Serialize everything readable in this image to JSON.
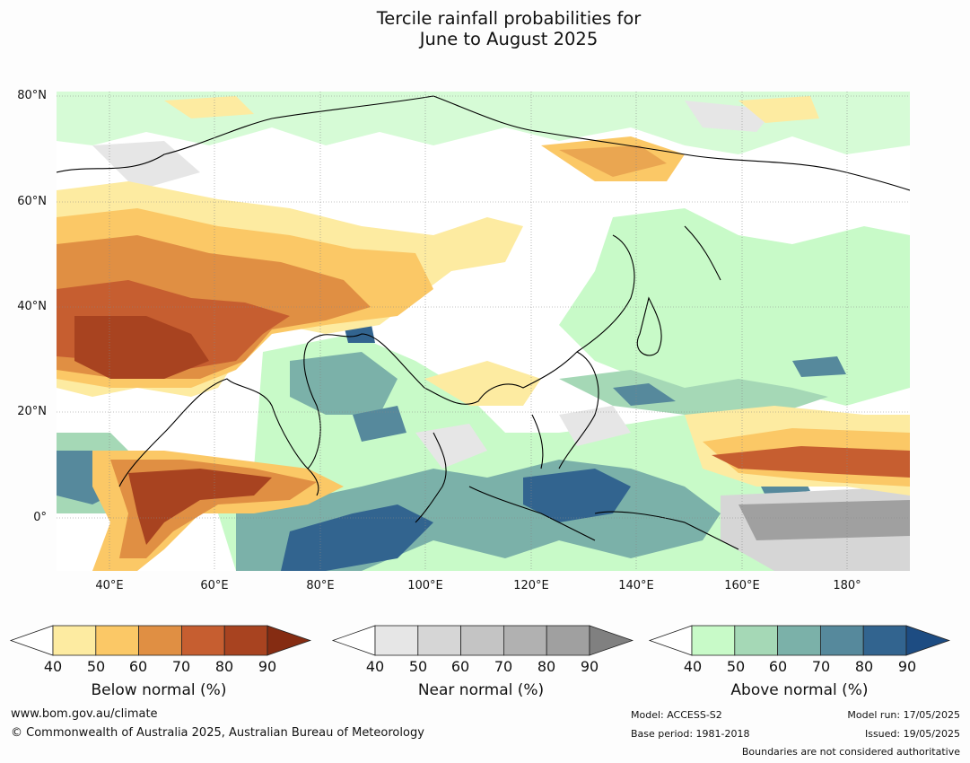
{
  "title": {
    "line1": "Tercile rainfall probabilities for",
    "line2": "June to August 2025"
  },
  "map": {
    "region": "Asia and western Pacific",
    "lat_labels": [
      "80°N",
      "60°N",
      "40°N",
      "20°N",
      "0°"
    ],
    "lon_labels": [
      "40°E",
      "60°E",
      "80°E",
      "100°E",
      "120°E",
      "140°E",
      "160°E",
      "180°"
    ]
  },
  "legends": [
    {
      "title": "Below normal (%)",
      "ticks": [
        "40",
        "50",
        "60",
        "70",
        "80",
        "90"
      ],
      "colors": [
        "#fdeba1",
        "#fbc866",
        "#e08f43",
        "#c65e30",
        "#a84320",
        "#852c12"
      ]
    },
    {
      "title": "Near normal (%)",
      "ticks": [
        "40",
        "50",
        "60",
        "70",
        "80",
        "90"
      ],
      "colors": [
        "#e6e6e6",
        "#d6d6d6",
        "#c4c4c4",
        "#b1b1b1",
        "#a0a0a0",
        "#808080"
      ]
    },
    {
      "title": "Above normal (%)",
      "ticks": [
        "40",
        "50",
        "60",
        "70",
        "80",
        "90"
      ],
      "colors": [
        "#c8fac8",
        "#a5d8b6",
        "#7bb1a9",
        "#56899c",
        "#32648f",
        "#1d4c82"
      ]
    }
  ],
  "footer": {
    "website": "www.bom.gov.au/climate",
    "copyright": "© Commonwealth of Australia 2025, Australian Bureau of Meteorology",
    "model": "Model: ACCESS-S2",
    "base_period": "Base period: 1981-2018",
    "model_run": "Model run: 17/05/2025",
    "issued": "Issued: 19/05/2025",
    "disclaimer": "Boundaries are not considered authoritative"
  }
}
